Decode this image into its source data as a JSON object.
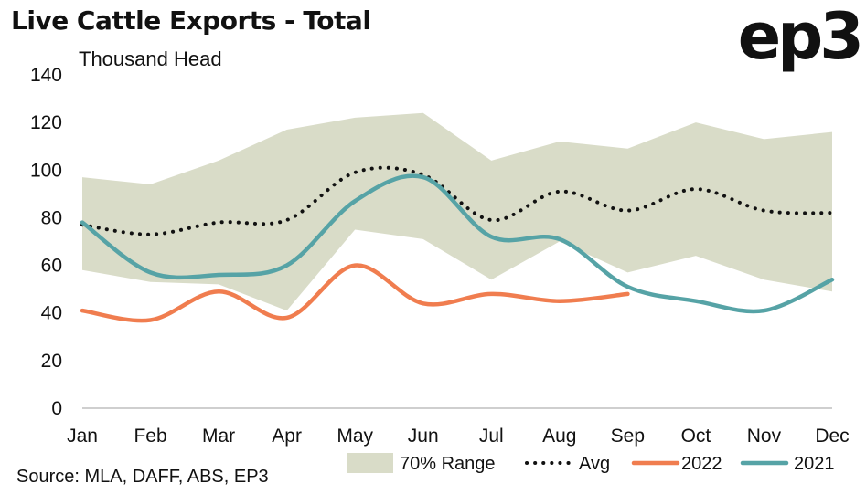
{
  "header": {
    "title": "Live Cattle Exports - Total",
    "logo": "ep3",
    "unit": "Thousand Head"
  },
  "footer": {
    "source": "Source: MLA, DAFF, ABS, EP3"
  },
  "colors": {
    "range": "#d9dcc8",
    "avg": "#111111",
    "s2022": "#f07d4f",
    "s2021": "#56a3a6"
  },
  "chart_data": {
    "type": "line",
    "title": "Live Cattle Exports - Total",
    "ylabel": "Thousand Head",
    "xlabel": "",
    "categories": [
      "Jan",
      "Feb",
      "Mar",
      "Apr",
      "May",
      "Jun",
      "Jul",
      "Aug",
      "Sep",
      "Oct",
      "Nov",
      "Dec"
    ],
    "ylim": [
      0,
      140
    ],
    "yticks": [
      0,
      20,
      40,
      60,
      80,
      100,
      120,
      140
    ],
    "grid": false,
    "legend_position": "bottom",
    "range": {
      "name": "70% Range",
      "upper": [
        97,
        94,
        104,
        117,
        122,
        124,
        104,
        112,
        109,
        120,
        113,
        116
      ],
      "lower": [
        58,
        53,
        52,
        41,
        75,
        71,
        54,
        70,
        57,
        64,
        54,
        49
      ]
    },
    "series": [
      {
        "name": "Avg",
        "style": "dotted",
        "values": [
          77,
          73,
          78,
          79,
          99,
          98,
          79,
          91,
          83,
          92,
          83,
          82
        ]
      },
      {
        "name": "2022",
        "style": "solid",
        "values": [
          41,
          37,
          49,
          38,
          60,
          44,
          48,
          45,
          48,
          null,
          null,
          null
        ]
      },
      {
        "name": "2021",
        "style": "solid",
        "values": [
          78,
          57,
          56,
          60,
          87,
          97,
          72,
          71,
          51,
          45,
          41,
          54
        ]
      }
    ]
  }
}
